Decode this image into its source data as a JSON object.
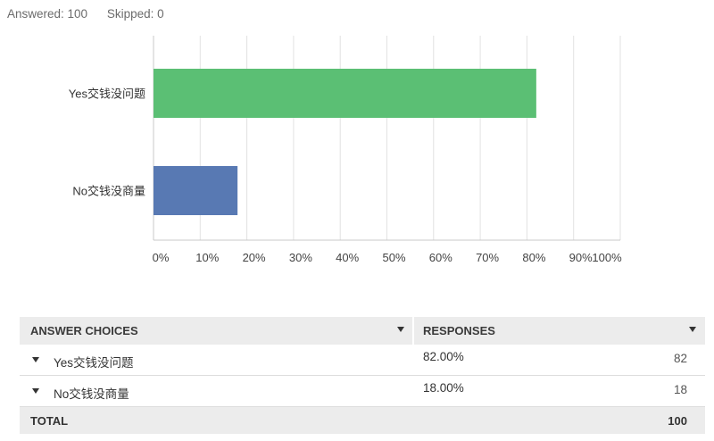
{
  "stats": {
    "answered": "Answered: 100",
    "skipped": "Skipped: 0"
  },
  "colors": {
    "yes": "#5bbf74",
    "no": "#5879b3",
    "grid": "#e2e2e2",
    "axis": "#c8c8c8"
  },
  "chart_data": {
    "type": "bar",
    "orientation": "horizontal",
    "categories": [
      "Yes交钱没问题",
      "No交钱没商量"
    ],
    "values": [
      82,
      18
    ],
    "xlim": [
      0,
      100
    ],
    "x_ticks": [
      "0%",
      "10%",
      "20%",
      "30%",
      "40%",
      "50%",
      "60%",
      "70%",
      "80%",
      "90%",
      "100%"
    ],
    "grid": true
  },
  "table": {
    "headers": {
      "choices": "ANSWER CHOICES",
      "responses": "RESPONSES"
    },
    "rows": [
      {
        "choice": "Yes交钱没问题",
        "percent": "82.00%",
        "count": "82"
      },
      {
        "choice": "No交钱没商量",
        "percent": "18.00%",
        "count": "18"
      }
    ],
    "total_label": "TOTAL",
    "total": "100"
  }
}
